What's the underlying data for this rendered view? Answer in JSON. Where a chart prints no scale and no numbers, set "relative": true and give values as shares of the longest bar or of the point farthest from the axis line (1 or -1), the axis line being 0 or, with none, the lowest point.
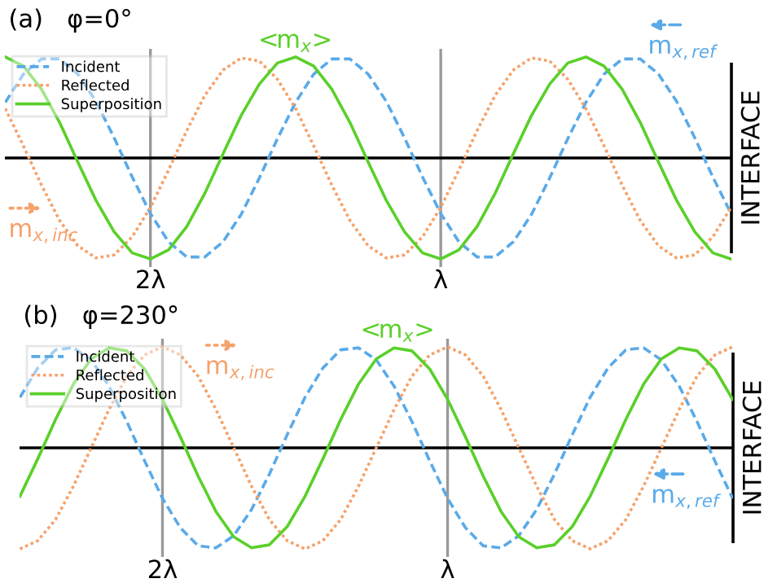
{
  "chart_data": [
    {
      "type": "line",
      "title": "(a)   φ=0°",
      "relative": true,
      "tick_labels": "x",
      "grid": "x",
      "legend": "top left",
      "categories": [
        null,
        null,
        null,
        null,
        null,
        null,
        null,
        null,
        "2λ",
        null,
        null,
        null,
        null,
        null,
        null,
        null,
        null,
        null,
        null,
        null,
        null,
        null,
        null,
        null,
        "λ",
        null,
        null,
        null,
        null,
        null,
        null,
        null,
        null,
        null,
        null,
        null,
        null,
        null,
        null,
        null,
        null
      ],
      "series": [
        {
          "name": "Incident",
          "color": "#5aaae8",
          "line_style": "dashed",
          "values": [
            0.55,
            0.83,
            0.98,
            0.98,
            0.83,
            0.56,
            0.2,
            -0.19,
            -0.55,
            -0.83,
            -0.98,
            -0.98,
            -0.83,
            -0.56,
            -0.2,
            0.19,
            0.55,
            0.83,
            0.98,
            0.98,
            0.83,
            0.56,
            0.2,
            -0.19,
            -0.55,
            -0.83,
            -0.98,
            -0.98,
            -0.83,
            -0.56,
            -0.2,
            0.19,
            0.55,
            0.83,
            0.98,
            0.98,
            0.83,
            0.56,
            0.2,
            -0.19,
            -0.55
          ]
        },
        {
          "name": "Reflected",
          "color": "#f5a26c",
          "line_style": "dotted",
          "values": [
            0.49,
            0.12,
            -0.27,
            -0.62,
            -0.87,
            -0.99,
            -0.96,
            -0.78,
            -0.49,
            -0.12,
            0.27,
            0.62,
            0.87,
            0.99,
            0.96,
            0.78,
            0.49,
            0.12,
            -0.27,
            -0.62,
            -0.87,
            -0.99,
            -0.96,
            -0.78,
            -0.49,
            -0.12,
            0.27,
            0.62,
            0.87,
            0.99,
            0.96,
            0.78,
            0.49,
            0.12,
            -0.27,
            -0.62,
            -0.87,
            -0.99,
            -0.96,
            -0.78,
            -0.49
          ]
        },
        {
          "name": "Superposition",
          "color": "#5ad02a",
          "line_style": "solid",
          "values": [
            1,
            0.91,
            0.68,
            0.35,
            -0.04,
            -0.42,
            -0.73,
            -0.94,
            -1,
            -0.91,
            -0.68,
            -0.35,
            0.04,
            0.42,
            0.73,
            0.94,
            1,
            0.91,
            0.68,
            0.35,
            -0.04,
            -0.42,
            -0.73,
            -0.94,
            -1,
            -0.91,
            -0.68,
            -0.35,
            0.04,
            0.42,
            0.73,
            0.94,
            1,
            0.91,
            0.68,
            0.35,
            -0.04,
            -0.42,
            -0.73,
            -0.94,
            -1
          ]
        }
      ],
      "annotations": [
        "m$_{x,inc}$",
        "m$_{x,ref}$",
        "<m$_{x}$>",
        "INTERFACE"
      ]
    },
    {
      "type": "line",
      "title": "(b)   φ=230°",
      "relative": true,
      "tick_labels": "x",
      "grid": "x",
      "legend": "top left",
      "categories": [
        null,
        null,
        null,
        null,
        null,
        null,
        null,
        null,
        "2λ",
        null,
        null,
        null,
        null,
        null,
        null,
        null,
        null,
        null,
        null,
        null,
        null,
        null,
        null,
        null,
        "λ",
        null,
        null,
        null,
        null,
        null,
        null,
        null,
        null,
        null,
        null,
        null,
        null,
        null,
        null,
        null,
        null
      ],
      "series": [
        {
          "name": "Incident",
          "color": "#5aaae8",
          "line_style": "dashed",
          "values": [
            0.5,
            0.79,
            0.97,
            0.99,
            0.87,
            0.61,
            0.26,
            -0.13,
            -0.5,
            -0.79,
            -0.97,
            -0.99,
            -0.87,
            -0.61,
            -0.26,
            0.13,
            0.5,
            0.79,
            0.97,
            0.99,
            0.87,
            0.61,
            0.26,
            -0.13,
            -0.5,
            -0.79,
            -0.97,
            -0.99,
            -0.87,
            -0.61,
            -0.26,
            0.13,
            0.5,
            0.79,
            0.97,
            0.99,
            0.87,
            0.61,
            0.26,
            -0.13,
            -0.5
          ]
        },
        {
          "name": "Reflected",
          "color": "#f5a26c",
          "line_style": "dotted",
          "values": [
            -1,
            -0.92,
            -0.71,
            -0.38,
            0,
            0.38,
            0.71,
            0.92,
            1,
            0.92,
            0.71,
            0.38,
            0,
            -0.38,
            -0.71,
            -0.92,
            -1,
            -0.92,
            -0.71,
            -0.38,
            0,
            0.38,
            0.71,
            0.92,
            1,
            0.92,
            0.71,
            0.38,
            0,
            -0.38,
            -0.71,
            -0.92,
            -1,
            -0.92,
            -0.71,
            -0.38,
            0,
            0.38,
            0.71,
            0.92,
            1
          ]
        },
        {
          "name": "Superposition",
          "color": "#5ad02a",
          "line_style": "solid",
          "values": [
            -0.48,
            -0.11,
            0.28,
            0.63,
            0.88,
            0.99,
            0.96,
            0.78,
            0.48,
            0.11,
            -0.28,
            -0.63,
            -0.88,
            -0.99,
            -0.96,
            -0.78,
            -0.48,
            -0.11,
            0.28,
            0.63,
            0.88,
            0.99,
            0.96,
            0.78,
            0.48,
            0.11,
            -0.28,
            -0.63,
            -0.88,
            -0.99,
            -0.96,
            -0.78,
            -0.48,
            -0.11,
            0.28,
            0.63,
            0.88,
            0.99,
            0.96,
            0.78,
            0.48
          ]
        }
      ],
      "annotations": [
        "m$_{x,inc}$",
        "m$_{x,ref}$",
        "<m$_{x}$>",
        "INTERFACE"
      ]
    }
  ]
}
